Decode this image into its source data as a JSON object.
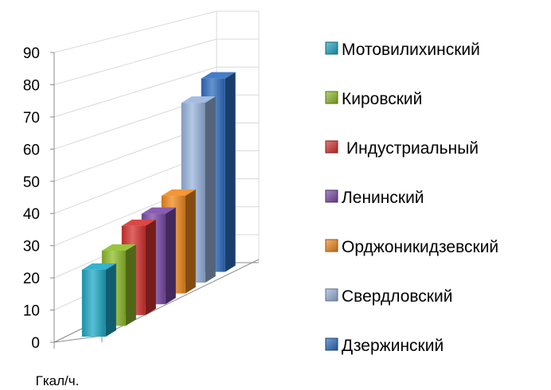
{
  "chart_data": {
    "type": "bar",
    "categories": [
      "Гкал/ч."
    ],
    "series": [
      {
        "name": "Мотовилихинский",
        "values": [
          21
        ],
        "color": "#1fa9c6"
      },
      {
        "name": "Кировский",
        "values": [
          24
        ],
        "color": "#8fbd2a"
      },
      {
        "name": "Индустриальный",
        "values": [
          29
        ],
        "color": "#d63230"
      },
      {
        "name": "Ленинский",
        "values": [
          30
        ],
        "color": "#7b4ba8"
      },
      {
        "name": "Орджоникидзевский",
        "values": [
          33
        ],
        "color": "#f28a1d"
      },
      {
        "name": "Свердловский",
        "values": [
          62
        ],
        "color": "#9ab5de"
      },
      {
        "name": "Дзержинский",
        "values": [
          68
        ],
        "color": "#2f6ec2"
      }
    ],
    "yticks": [
      "0",
      "10",
      "20",
      "30",
      "40",
      "50",
      "60",
      "70",
      "80",
      "90"
    ],
    "ylim": [
      0,
      90
    ],
    "grid": true,
    "legend_position": "right",
    "three_d": true
  }
}
